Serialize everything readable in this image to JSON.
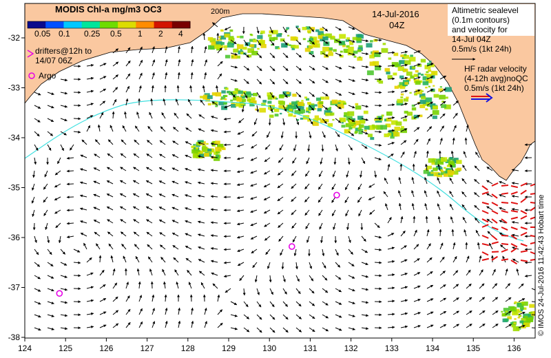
{
  "colorbar": {
    "title": "MODIS Chl-a mg/m3 OC3",
    "ticks": [
      "0.05",
      "0.1",
      "0.25",
      "0.5",
      "1",
      "2",
      "4"
    ],
    "colors": [
      "#0a0a8c",
      "#0050ff",
      "#00c8ff",
      "#00e69b",
      "#6edc00",
      "#dcdc00",
      "#ff8c00",
      "#d21400",
      "#780000"
    ]
  },
  "contour_label": "200m",
  "date": "14-Jul-2016",
  "time": "04Z",
  "legend": {
    "altimetry_lines": [
      "Altimetric sealevel",
      "(0.1m contours)",
      "and velocity for",
      "14-Jul 04Z"
    ],
    "altimetry_scale": "0.5m/s (1kt 24h)",
    "hf_lines": [
      "HF radar velocity",
      "(4-12h avg)noQC"
    ],
    "hf_scale": "0.5m/s (1kt 24h)",
    "drifters_lines": [
      "drifters@12h to",
      "14/07 06Z"
    ],
    "argo": "Argo"
  },
  "credit": "© IMOS 24-Jul-2016 11:42:43 Hobart time",
  "axes": {
    "lon_ticks": [
      "124",
      "125",
      "126",
      "127",
      "128",
      "129",
      "130",
      "131",
      "132",
      "133",
      "134",
      "135",
      "136"
    ],
    "lat_ticks": [
      "-32",
      "-33",
      "-34",
      "-35",
      "-36",
      "-37",
      "-38"
    ]
  },
  "argo_floats": [
    {
      "lon": 131.65,
      "lat": -35.15
    },
    {
      "lon": 130.55,
      "lat": -36.18
    },
    {
      "lon": 124.85,
      "lat": -37.12
    }
  ],
  "colors": {
    "land": "#fac8a0",
    "argo": "#e600e6",
    "hf_arrow": "#e01010",
    "contour": "#40e0e0",
    "hf_legend_top": "#e01010",
    "hf_legend_bottom": "#1010e0"
  }
}
